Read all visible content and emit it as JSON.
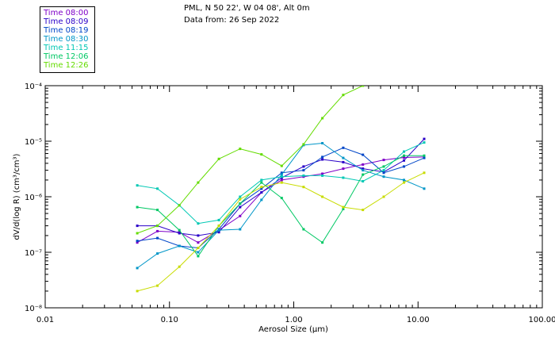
{
  "header": {
    "line1": "PML, N 50 22', W 04 08', Alt 0m",
    "line2": "Data from: 26 Sep 2022"
  },
  "chart_data": {
    "type": "line",
    "title": "",
    "xlabel": "Aerosol Size (µm)",
    "ylabel": "dV/d(log R) (cm³/cm³)",
    "xscale": "log",
    "yscale": "log",
    "xlim": [
      0.01,
      100
    ],
    "ylim": [
      1e-08,
      0.0001
    ],
    "x_ticks": [
      0.01,
      0.1,
      1,
      10,
      100
    ],
    "x_tick_labels": [
      "0.01",
      "0.10",
      "1.00",
      "10.00",
      "100.00"
    ],
    "y_ticks": [
      1e-08,
      1e-07,
      1e-06,
      1e-05,
      0.0001
    ],
    "y_tick_labels": [
      "10⁻⁸",
      "10⁻⁷",
      "10⁻⁶",
      "10⁻⁵",
      "10⁻⁴"
    ],
    "grid": false,
    "legend_placement": "top-left, outside plot",
    "series": [
      {
        "name": "Time 08:00",
        "color": "#7f00c8",
        "x": [
          0.055,
          0.08,
          0.12,
          0.17,
          0.25,
          0.37,
          0.55,
          0.8,
          1.2,
          1.7,
          2.5,
          3.6,
          5.3,
          7.7,
          11.2
        ],
        "y": [
          1.5e-07,
          2.4e-07,
          2.3e-07,
          1.5e-07,
          2.5e-07,
          4.5e-07,
          1.2e-06,
          2e-06,
          2.3e-06,
          2.6e-06,
          3.2e-06,
          3.8e-06,
          4.6e-06,
          5.1e-06,
          5.2e-06
        ]
      },
      {
        "name": "Time 08:09",
        "color": "#2a00c8",
        "x": [
          0.055,
          0.08,
          0.12,
          0.17,
          0.25,
          0.37,
          0.55,
          0.8,
          1.2,
          1.7,
          2.5,
          3.6,
          5.3,
          7.7,
          11.2
        ],
        "y": [
          3e-07,
          3e-07,
          2.2e-07,
          2e-07,
          2.3e-07,
          6.5e-07,
          1.2e-06,
          2.2e-06,
          3.5e-06,
          4.7e-06,
          4.2e-06,
          3.2e-06,
          2.8e-06,
          4.5e-06,
          1.1e-05
        ]
      },
      {
        "name": "Time 08:19",
        "color": "#0046c8",
        "x": [
          0.055,
          0.08,
          0.12,
          0.17,
          0.25,
          0.37,
          0.55,
          0.8,
          1.2,
          1.7,
          2.5,
          3.6,
          5.3,
          7.7,
          11.2
        ],
        "y": [
          1.6e-07,
          1.8e-07,
          1.3e-07,
          1.2e-07,
          2.6e-07,
          7.5e-07,
          1.4e-06,
          2.7e-06,
          3e-06,
          5.2e-06,
          7.6e-06,
          5.7e-06,
          2.7e-06,
          3.5e-06,
          5e-06
        ]
      },
      {
        "name": "Time 08:30",
        "color": "#0096c8",
        "x": [
          0.055,
          0.08,
          0.12,
          0.17,
          0.25,
          0.37,
          0.55,
          0.8,
          1.2,
          1.7,
          2.5,
          3.6,
          5.3,
          7.7,
          11.2
        ],
        "y": [
          5.2e-08,
          9.5e-08,
          1.3e-07,
          1e-07,
          2.5e-07,
          2.6e-07,
          8.8e-07,
          2.5e-06,
          8.5e-06,
          9.2e-06,
          5e-06,
          3e-06,
          2.3e-06,
          2e-06,
          1.4e-06
        ]
      },
      {
        "name": "Time 11:15",
        "color": "#00c8b4",
        "x": [
          0.055,
          0.08,
          0.12,
          0.17,
          0.25,
          0.37,
          0.55,
          0.8,
          1.2,
          1.7,
          2.5,
          3.6,
          5.3,
          7.7,
          11.2
        ],
        "y": [
          1.6e-06,
          1.4e-06,
          7e-07,
          3.3e-07,
          3.8e-07,
          1e-06,
          2e-06,
          2.3e-06,
          2.4e-06,
          2.4e-06,
          2.2e-06,
          1.9e-06,
          3e-06,
          6.5e-06,
          9.5e-06
        ]
      },
      {
        "name": "Time 12:06",
        "color": "#00c864",
        "x": [
          0.055,
          0.08,
          0.12,
          0.17,
          0.25,
          0.37,
          0.55,
          0.8,
          1.2,
          1.7,
          2.5,
          3.6,
          5.3,
          7.7,
          11.2
        ],
        "y": [
          6.5e-07,
          5.8e-07,
          2.5e-07,
          8.5e-08,
          3e-07,
          7.5e-07,
          1.8e-06,
          9.5e-07,
          2.6e-07,
          1.5e-07,
          6e-07,
          2.5e-06,
          3.5e-06,
          5.5e-06,
          5.5e-06
        ]
      },
      {
        "name": "Time 12:26",
        "color": "#64dc00",
        "x": [
          0.055,
          0.08,
          0.12,
          0.17,
          0.25,
          0.37,
          0.55,
          0.8,
          1.2,
          1.7,
          2.5,
          3.6,
          5.3,
          7.7,
          11.2
        ],
        "y": [
          2.2e-07,
          3e-07,
          7e-07,
          1.8e-06,
          4.8e-06,
          7.3e-06,
          5.8e-06,
          3.6e-06,
          8.8e-06,
          2.6e-05,
          6.8e-05,
          0.0001,
          null,
          null,
          null
        ]
      },
      {
        "name": "",
        "color": "#c8dc00",
        "x": [
          0.055,
          0.08,
          0.12,
          0.17,
          0.25,
          0.37,
          0.55,
          0.8,
          1.2,
          1.7,
          2.5,
          3.6,
          5.3,
          7.7,
          11.2
        ],
        "y": [
          2e-08,
          2.5e-08,
          5.5e-08,
          1.2e-07,
          3e-07,
          9e-07,
          1.5e-06,
          1.8e-06,
          1.5e-06,
          1e-06,
          6.5e-07,
          5.8e-07,
          1e-06,
          1.8e-06,
          2.7e-06
        ]
      }
    ]
  }
}
